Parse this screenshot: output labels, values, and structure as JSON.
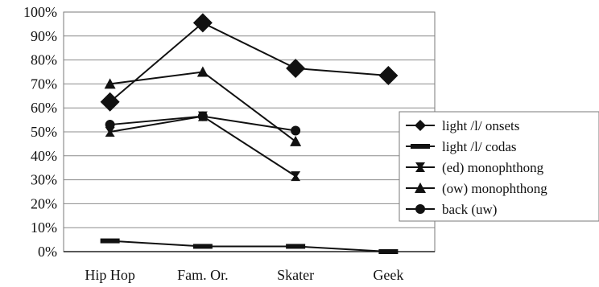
{
  "chart_data": {
    "type": "line",
    "categories": [
      "Hip Hop",
      "Fam. Or.",
      "Skater",
      "Geek"
    ],
    "ylim": [
      0,
      100
    ],
    "yticks": [
      "0%",
      "10%",
      "20%",
      "30%",
      "40%",
      "50%",
      "60%",
      "70%",
      "80%",
      "90%",
      "100%"
    ],
    "grid": true,
    "legend_position": "right",
    "series": [
      {
        "name": "light /l/ onsets",
        "marker": "diamond-large",
        "values": [
          62.5,
          95.5,
          76.5,
          73.5
        ]
      },
      {
        "name": "light /l/ codas",
        "marker": "dash",
        "values": [
          4.5,
          2.2,
          2.2,
          0
        ]
      },
      {
        "name": "(ed) monophthong",
        "marker": "bowtie",
        "values": [
          50,
          56.5,
          31.5,
          null
        ]
      },
      {
        "name": "(ow) monophthong",
        "marker": "triangle",
        "values": [
          70,
          75,
          46,
          null
        ]
      },
      {
        "name": "back (uw)",
        "marker": "circle",
        "values": [
          53,
          56.5,
          50.5,
          null
        ]
      }
    ]
  }
}
